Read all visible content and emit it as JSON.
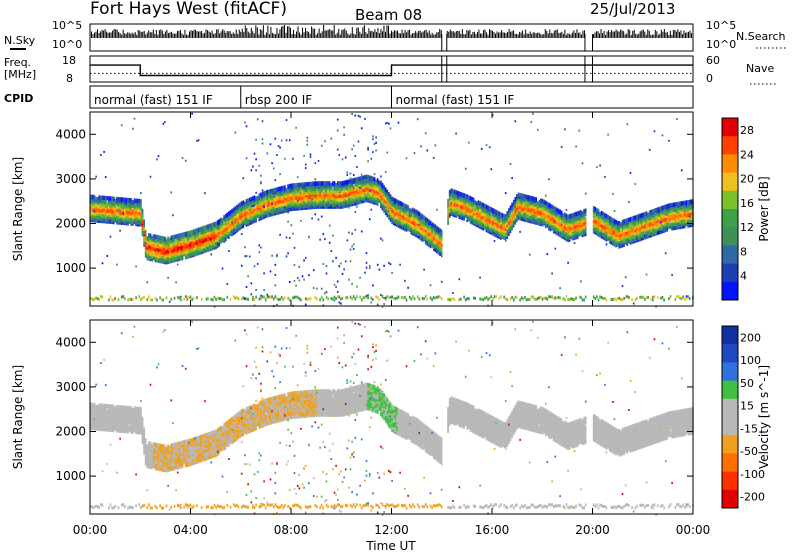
{
  "header": {
    "station": "Fort Hays West (fitACF)",
    "beam": "Beam 08",
    "date": "25/Jul/2013"
  },
  "noise_panel": {
    "left_label": "N.Sky",
    "left_ticks": [
      "10^5",
      "10^0"
    ],
    "right_ticks": [
      "10^5",
      "10^0"
    ],
    "right_label": "N.Search"
  },
  "freq_panel": {
    "left_label_1": "Freq.",
    "left_label_2": "[MHz]",
    "left_ticks": [
      "18",
      "8"
    ],
    "right_ticks": [
      "60",
      "0"
    ],
    "right_label": "Nave"
  },
  "cpid": {
    "label": "CPID",
    "segments": [
      {
        "name": "normal (fast) 151 IF",
        "start_h": 0,
        "end_h": 6
      },
      {
        "name": "rbsp 200 IF",
        "start_h": 6,
        "end_h": 12
      },
      {
        "name": "normal (fast) 151 IF",
        "start_h": 12,
        "end_h": 24
      }
    ]
  },
  "time_axis": {
    "label": "Time UT",
    "ticks": [
      "00:00",
      "04:00",
      "08:00",
      "12:00",
      "16:00",
      "20:00",
      "00:00"
    ]
  },
  "colors": {
    "power_scale": [
      "#0014ff",
      "#1e3fb4",
      "#2f6aa8",
      "#3f8f5a",
      "#3fa04a",
      "#7cc02a",
      "#f0c020",
      "#ff8c00",
      "#ff4000",
      "#e00000"
    ],
    "velocity_scale": [
      "#1030a0",
      "#2048c0",
      "#3070e0",
      "#40c040",
      "#b8b8b8",
      "#b8b8b8",
      "#f0a020",
      "#ff7000",
      "#ff3000",
      "#e00000"
    ]
  },
  "chart_data": [
    {
      "type": "heatmap",
      "title": "Power",
      "xlabel": "Time UT",
      "ylabel": "Slant Range [km]",
      "x_range_hours": [
        0,
        24
      ],
      "ylim": [
        150,
        4500
      ],
      "y_ticks": [
        1000,
        2000,
        3000,
        4000
      ],
      "colorbar_label": "Power [dB]",
      "colorbar_ticks": [
        4,
        8,
        12,
        16,
        20,
        24,
        28
      ],
      "colorbar_range": [
        0,
        30
      ],
      "data_gaps_hours": [
        [
          14.0,
          14.2
        ],
        [
          19.7,
          20.0
        ]
      ],
      "backscatter_band_km": [
        [
          0.0,
          2300
        ],
        [
          1.0,
          2250
        ],
        [
          2.0,
          2200
        ],
        [
          2.2,
          1450
        ],
        [
          3.0,
          1350
        ],
        [
          4.0,
          1500
        ],
        [
          5.0,
          1700
        ],
        [
          6.0,
          2150
        ],
        [
          7.0,
          2400
        ],
        [
          8.0,
          2550
        ],
        [
          9.0,
          2600
        ],
        [
          10.0,
          2600
        ],
        [
          11.0,
          2750
        ],
        [
          11.5,
          2650
        ],
        [
          12.0,
          2250
        ],
        [
          13.0,
          1950
        ],
        [
          14.0,
          1500
        ],
        [
          14.3,
          2450
        ],
        [
          15.0,
          2300
        ],
        [
          16.0,
          2000
        ],
        [
          16.5,
          1850
        ],
        [
          17.0,
          2350
        ],
        [
          18.0,
          2200
        ],
        [
          19.0,
          1850
        ],
        [
          20.0,
          2050
        ],
        [
          21.0,
          1700
        ],
        [
          22.0,
          1900
        ],
        [
          23.0,
          2100
        ],
        [
          24.0,
          2200
        ]
      ],
      "near_range_band_km": 250
    },
    {
      "type": "heatmap",
      "title": "Velocity",
      "xlabel": "Time UT",
      "ylabel": "Slant Range [km]",
      "x_range_hours": [
        0,
        24
      ],
      "ylim": [
        150,
        4500
      ],
      "y_ticks": [
        1000,
        2000,
        3000,
        4000
      ],
      "colorbar_label": "Velocity [m s^-1]",
      "colorbar_ticks": [
        200,
        100,
        50,
        15,
        -15,
        -50,
        -100,
        -200
      ],
      "colorbar_range": [
        -250,
        250
      ],
      "data_gaps_hours": [
        [
          14.0,
          14.2
        ],
        [
          19.7,
          20.0
        ]
      ]
    },
    {
      "type": "line",
      "title": "Frequency / Nave",
      "x_range_hours": [
        0,
        24
      ],
      "frequency_mhz": [
        [
          0,
          14.5
        ],
        [
          2.0,
          14.5
        ],
        [
          2.0,
          10.5
        ],
        [
          12.0,
          10.5
        ],
        [
          12.0,
          14.5
        ],
        [
          19.7,
          14.5
        ],
        [
          20.0,
          14.5
        ],
        [
          24.0,
          14.5
        ]
      ],
      "nave_level": 20
    }
  ]
}
